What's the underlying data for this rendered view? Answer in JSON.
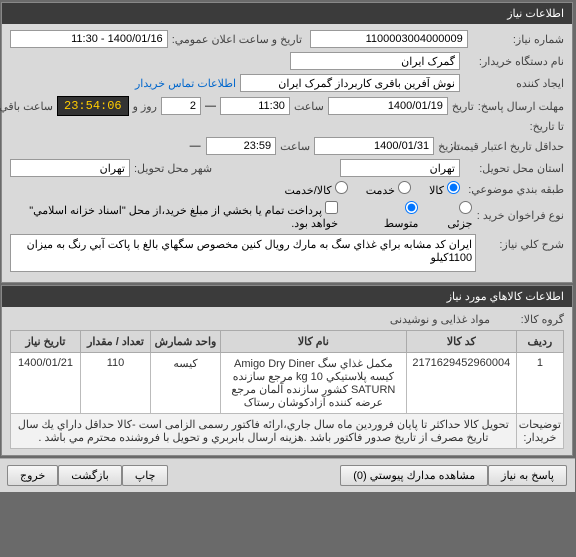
{
  "panels": {
    "info": {
      "title": "اطلاعات نیاز"
    },
    "items": {
      "title": "اطلاعات کالاهاي مورد نياز"
    }
  },
  "labels": {
    "need_no": "شماره نياز:",
    "announce": "تاريخ و ساعت اعلان عمومي:",
    "buyer_org": "نام دستگاه خريدار:",
    "creator": "ايجاد كننده",
    "contact": "اطلاعات تماس خريدار",
    "deadline": "مهلت ارسال پاسخ:",
    "to_date": "تا تاريخ:",
    "price_min_date": "حداقل تاريخ اعتبار قيمت:",
    "deliver_state": "استان محل تحويل:",
    "deliver_city": "شهر محل تحويل:",
    "budget_cat": "طبقه بندي موضوعي:",
    "call_type": "نوع فراخوان خريد :",
    "date": "تاريخ",
    "time": "ساعت",
    "days": "روز و",
    "remain": "ساعت باقي مانده",
    "kala": "کالا",
    "service": "خدمت",
    "kala_service": "کالا/خدمت",
    "low": "جزئی",
    "mid": "متوسط",
    "note_partial": "پرداخت تمام يا بخشي از مبلغ خريد،از محل \"اسناد خزانه اسلامي\" خواهد بود.",
    "main_desc": "شرح کلي نياز:",
    "item_group": "گروه کالا:",
    "item_group_val": "مواد غذایی و نوشیدنی",
    "buyer_notes": "توضيحات خريدار:"
  },
  "values": {
    "need_no": "1100003004000009",
    "announce": "1400/01/16 - 11:30",
    "buyer_org": "گمرک ايران",
    "creator": "نوش آفرین باقری کاربرداز گمرک ایران",
    "deadline_date": "1400/01/19",
    "deadline_time": "11:30",
    "countdown_days": "2",
    "countdown_time": "23:54:06",
    "price_date": "1400/01/31",
    "price_time": "23:59",
    "deliver_state": "تهران",
    "deliver_city": "تهران",
    "main_desc": "ايران كد مشابه براي غذاي سگ به مارك رويال كنين مخصوص سگهاي بالغ با پاكت آبي رنگ به ميزان 1100كيلو",
    "buyer_notes": "تحويل كالا حداكثر تا پايان فروردين ماه سال جاري،ارائه فاکتور رسمی الزامی است -كالا حداقل داراي يك سال تاريخ مصرف از تاريخ صدور فاكتور باشد .هزينه ارسال بابربري و تحويل با فروشنده محترم مي باشد ."
  },
  "table": {
    "headers": {
      "row": "رديف",
      "code": "کد کالا",
      "name": "نام کالا",
      "unit": "واحد شمارش",
      "qty": "تعداد / مقدار",
      "date": "تاريخ نياز"
    },
    "rows": [
      {
        "row": "1",
        "code": "2171629452960004",
        "name": "مکمل غذاي سگ Amigo Dry Diner کيسه پلاستيکي 10 kg مرجع سازنده SATURN کشور سازنده آلمان مرجع عرضه کننده آزادکوشان رستاک",
        "unit": "کیسه",
        "qty": "110",
        "date": "1400/01/21"
      }
    ]
  },
  "footer": {
    "reply": "پاسخ به نياز",
    "attach": "مشاهده مدارك پيوستي  (0)",
    "print": "چاپ",
    "back": "بازگشت",
    "exit": "خروج"
  }
}
